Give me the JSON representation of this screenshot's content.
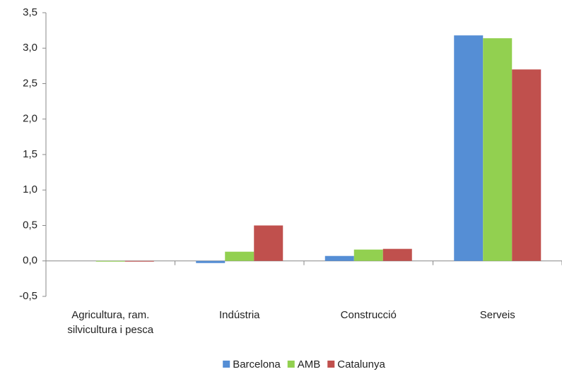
{
  "chart_data": {
    "type": "bar",
    "categories": [
      "Agricultura, ram. silvicultura i pesca",
      "Indústria",
      "Construcció",
      "Serveis"
    ],
    "series": [
      {
        "name": "Barcelona",
        "color": "#558ed5",
        "values": [
          0.0,
          -0.03,
          0.07,
          3.18
        ]
      },
      {
        "name": "AMB",
        "color": "#92d050",
        "values": [
          -0.01,
          0.13,
          0.16,
          3.14
        ]
      },
      {
        "name": "Catalunya",
        "color": "#c0504d",
        "values": [
          -0.01,
          0.5,
          0.17,
          2.7
        ]
      }
    ],
    "ylim": [
      -0.5,
      3.5
    ],
    "yticks": [
      {
        "value": -0.5,
        "label": "-0,5"
      },
      {
        "value": 0,
        "label": "0,0"
      },
      {
        "value": 0.5,
        "label": "0,5"
      },
      {
        "value": 1,
        "label": "1,0"
      },
      {
        "value": 1.5,
        "label": "1,5"
      },
      {
        "value": 2,
        "label": "2,0"
      },
      {
        "value": 2.5,
        "label": "2,5"
      },
      {
        "value": 3,
        "label": "3,0"
      },
      {
        "value": 3.5,
        "label": "3,5"
      }
    ],
    "grid": false,
    "legend": "bottom"
  }
}
